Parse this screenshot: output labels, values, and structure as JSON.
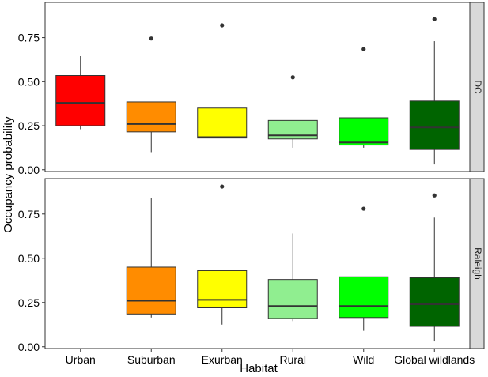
{
  "chart_data": {
    "type": "boxplot",
    "xlabel": "Habitat",
    "ylabel": "Occupancy probability",
    "categories": [
      "Urban",
      "Suburban",
      "Exurban",
      "Rural",
      "Wild",
      "Global wildlands"
    ],
    "yticks": [
      "0.00",
      "0.25",
      "0.50",
      "0.75"
    ],
    "ylim": [
      -0.01,
      0.95
    ],
    "colors": {
      "Urban": "#ff0000",
      "Suburban": "#ff8c00",
      "Exurban": "#ffff00",
      "Rural": "#90ee90",
      "Wild": "#00ff00",
      "Global wildlands": "#006400"
    },
    "facets": [
      {
        "strip": "DC",
        "boxes": [
          {
            "category": "Urban",
            "min": 0.23,
            "q1": 0.25,
            "median": 0.38,
            "q3": 0.535,
            "max": 0.645,
            "outliers": []
          },
          {
            "category": "Suburban",
            "min": 0.1,
            "q1": 0.215,
            "median": 0.26,
            "q3": 0.385,
            "max": 0.385,
            "outliers": [
              0.745
            ]
          },
          {
            "category": "Exurban",
            "min": 0.18,
            "q1": 0.18,
            "median": 0.185,
            "q3": 0.35,
            "max": 0.35,
            "outliers": [
              0.82
            ]
          },
          {
            "category": "Rural",
            "min": 0.125,
            "q1": 0.175,
            "median": 0.195,
            "q3": 0.28,
            "max": 0.28,
            "outliers": [
              0.525
            ]
          },
          {
            "category": "Wild",
            "min": 0.125,
            "q1": 0.14,
            "median": 0.155,
            "q3": 0.295,
            "max": 0.295,
            "outliers": [
              0.685
            ]
          },
          {
            "category": "Global wildlands",
            "min": 0.03,
            "q1": 0.115,
            "median": 0.24,
            "q3": 0.39,
            "max": 0.73,
            "outliers": [
              0.855
            ]
          }
        ]
      },
      {
        "strip": "Raleigh",
        "boxes": [
          {
            "category": "Suburban",
            "min": 0.165,
            "q1": 0.185,
            "median": 0.26,
            "q3": 0.45,
            "max": 0.84,
            "outliers": []
          },
          {
            "category": "Exurban",
            "min": 0.125,
            "q1": 0.22,
            "median": 0.265,
            "q3": 0.43,
            "max": 0.43,
            "outliers": [
              0.905
            ]
          },
          {
            "category": "Rural",
            "min": 0.145,
            "q1": 0.16,
            "median": 0.23,
            "q3": 0.38,
            "max": 0.64,
            "outliers": []
          },
          {
            "category": "Wild",
            "min": 0.09,
            "q1": 0.165,
            "median": 0.23,
            "q3": 0.395,
            "max": 0.395,
            "outliers": [
              0.78
            ]
          },
          {
            "category": "Global wildlands",
            "min": 0.03,
            "q1": 0.115,
            "median": 0.24,
            "q3": 0.39,
            "max": 0.73,
            "outliers": [
              0.855
            ]
          }
        ]
      }
    ]
  }
}
